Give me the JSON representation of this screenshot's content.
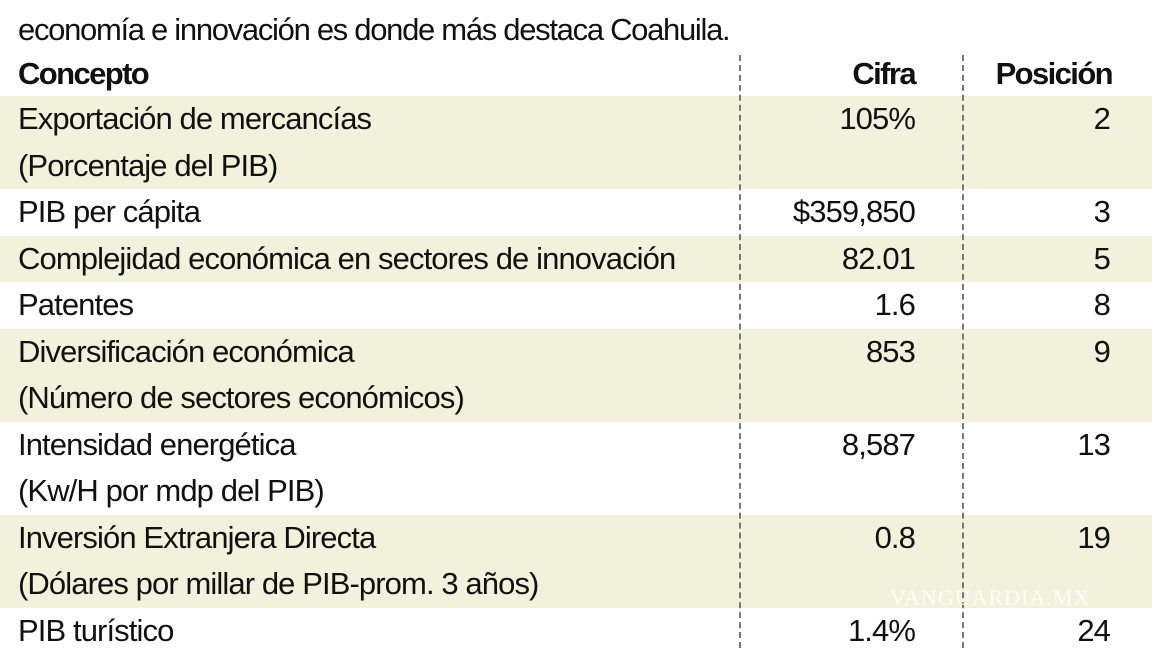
{
  "intro_text": "economía e innovación es donde más destaca Coahuila.",
  "table": {
    "headers": [
      "Concepto",
      "Cifra",
      "Posición"
    ],
    "rows": [
      {
        "concepto": "Exportación de mercancías",
        "detalle": "(Porcentaje del PIB)",
        "cifra": "105%",
        "posicion": "2"
      },
      {
        "concepto": "PIB per cápita",
        "detalle": "",
        "cifra": "$359,850",
        "posicion": "3"
      },
      {
        "concepto": "Complejidad económica en sectores de innovación",
        "detalle": "",
        "cifra": "82.01",
        "posicion": "5"
      },
      {
        "concepto": "Patentes",
        "detalle": "",
        "cifra": "1.6",
        "posicion": "8"
      },
      {
        "concepto": "Diversificación económica",
        "detalle": "(Número de sectores económicos)",
        "cifra": "853",
        "posicion": "9"
      },
      {
        "concepto": "Intensidad energética",
        "detalle": "(Kw/H por mdp del PIB)",
        "cifra": "8,587",
        "posicion": "13"
      },
      {
        "concepto": "Inversión Extranjera Directa",
        "detalle": "(Dólares por millar de PIB-prom. 3 años)",
        "cifra": "0.8",
        "posicion": "19"
      },
      {
        "concepto": "PIB turístico",
        "detalle": "",
        "cifra": "1.4%",
        "posicion": "24"
      }
    ]
  },
  "watermark": "VANGUARDIA.MX",
  "colors": {
    "row_shade": "#f2f2dc",
    "text": "#111111",
    "divider": "#777777"
  }
}
